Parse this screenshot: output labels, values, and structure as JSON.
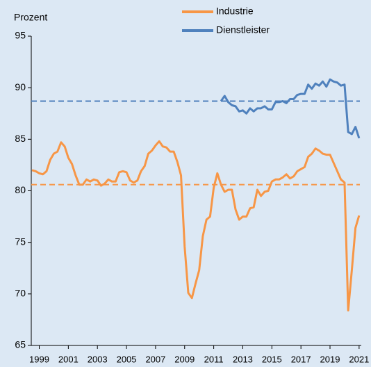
{
  "chart_data": {
    "type": "line",
    "y_label": "Prozent",
    "x": [
      1998.5,
      1998.75,
      1999,
      1999.25,
      1999.5,
      1999.75,
      2000,
      2000.25,
      2000.5,
      2000.75,
      2001,
      2001.25,
      2001.5,
      2001.75,
      2002,
      2002.25,
      2002.5,
      2002.75,
      2003,
      2003.25,
      2003.5,
      2003.75,
      2004,
      2004.25,
      2004.5,
      2004.75,
      2005,
      2005.25,
      2005.5,
      2005.75,
      2006,
      2006.25,
      2006.5,
      2006.75,
      2007,
      2007.25,
      2007.5,
      2007.75,
      2008,
      2008.25,
      2008.5,
      2008.75,
      2009,
      2009.25,
      2009.5,
      2009.75,
      2010,
      2010.25,
      2010.5,
      2010.75,
      2011,
      2011.25,
      2011.5,
      2011.75,
      2012,
      2012.25,
      2012.5,
      2012.75,
      2013,
      2013.25,
      2013.5,
      2013.75,
      2014,
      2014.25,
      2014.5,
      2014.75,
      2015,
      2015.25,
      2015.5,
      2015.75,
      2016,
      2016.25,
      2016.5,
      2016.75,
      2017,
      2017.25,
      2017.5,
      2017.75,
      2018,
      2018.25,
      2018.5,
      2018.75,
      2019,
      2019.25,
      2019.5,
      2019.75,
      2020,
      2020.25,
      2020.5,
      2020.75,
      2021
    ],
    "series": [
      {
        "name": "Industrie",
        "color": "#f79646",
        "average": 80.6,
        "values": [
          82.0,
          81.9,
          81.7,
          81.6,
          81.9,
          83.0,
          83.6,
          83.8,
          84.7,
          84.3,
          83.2,
          82.6,
          81.5,
          80.6,
          80.6,
          81.1,
          80.9,
          81.1,
          81.0,
          80.5,
          80.7,
          81.1,
          80.9,
          80.9,
          81.8,
          81.9,
          81.8,
          81.0,
          80.8,
          81.0,
          81.9,
          82.4,
          83.6,
          83.9,
          84.4,
          84.8,
          84.3,
          84.2,
          83.8,
          83.8,
          82.8,
          81.5,
          74.6,
          70.1,
          69.6,
          71.0,
          72.3,
          75.6,
          77.2,
          77.5,
          80.3,
          81.7,
          80.6,
          79.9,
          80.1,
          80.1,
          78.2,
          77.2,
          77.5,
          77.5,
          78.3,
          78.4,
          80.1,
          79.5,
          79.9,
          80.0,
          80.9,
          81.1,
          81.1,
          81.3,
          81.6,
          81.2,
          81.4,
          81.9,
          82.1,
          82.3,
          83.3,
          83.6,
          84.1,
          83.9,
          83.6,
          83.5,
          83.5,
          82.7,
          81.9,
          81.1,
          80.8,
          68.4,
          72.3,
          76.4,
          77.6
        ]
      },
      {
        "name": "Dienstleister",
        "color": "#4f81bd",
        "average": 88.7,
        "values": [
          null,
          null,
          null,
          null,
          null,
          null,
          null,
          null,
          null,
          null,
          null,
          null,
          null,
          null,
          null,
          null,
          null,
          null,
          null,
          null,
          null,
          null,
          null,
          null,
          null,
          null,
          null,
          null,
          null,
          null,
          null,
          null,
          null,
          null,
          null,
          null,
          null,
          null,
          null,
          null,
          null,
          null,
          null,
          null,
          null,
          null,
          null,
          null,
          null,
          null,
          null,
          null,
          88.7,
          89.2,
          88.6,
          88.3,
          88.2,
          87.7,
          87.8,
          87.5,
          88.0,
          87.7,
          88.0,
          88.0,
          88.2,
          87.9,
          87.9,
          88.6,
          88.6,
          88.7,
          88.5,
          88.9,
          88.9,
          89.3,
          89.4,
          89.4,
          90.3,
          89.9,
          90.4,
          90.2,
          90.6,
          90.1,
          90.8,
          90.6,
          90.5,
          90.2,
          90.3,
          85.7,
          85.5,
          86.2,
          85.1
        ]
      }
    ],
    "xlim": [
      1998.45,
      2021.15
    ],
    "xticks": [
      1999,
      2001,
      2003,
      2005,
      2007,
      2009,
      2011,
      2013,
      2015,
      2017,
      2019,
      2021
    ],
    "ylim": [
      65,
      95
    ],
    "yticks": [
      65,
      70,
      75,
      80,
      85,
      90,
      95
    ],
    "legend": "top"
  }
}
